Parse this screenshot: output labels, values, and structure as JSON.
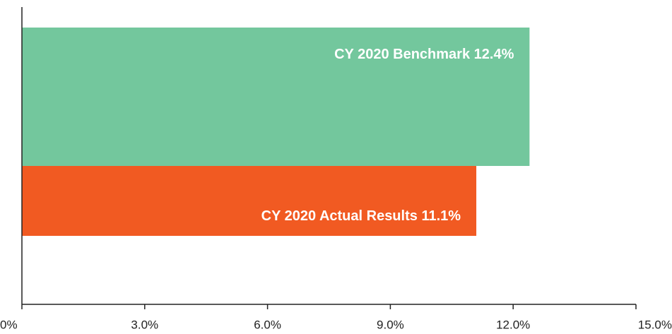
{
  "chart_data": {
    "type": "bar",
    "orientation": "horizontal",
    "categories": [
      "CY 2020 Benchmark",
      "CY 2020 Actual Results"
    ],
    "values": [
      12.4,
      11.1
    ],
    "value_labels": [
      "12.4%",
      "11.1%"
    ],
    "colors": [
      "#73c79d",
      "#f15a22"
    ],
    "xlim": [
      0,
      15
    ],
    "xticks": [
      {
        "value": 0,
        "label": "0%"
      },
      {
        "value": 3,
        "label": "3.0%"
      },
      {
        "value": 6,
        "label": "6.0%"
      },
      {
        "value": 9,
        "label": "9.0%"
      },
      {
        "value": 12,
        "label": "12.0%"
      },
      {
        "value": 15,
        "label": "15.0%"
      }
    ],
    "grid": false
  }
}
